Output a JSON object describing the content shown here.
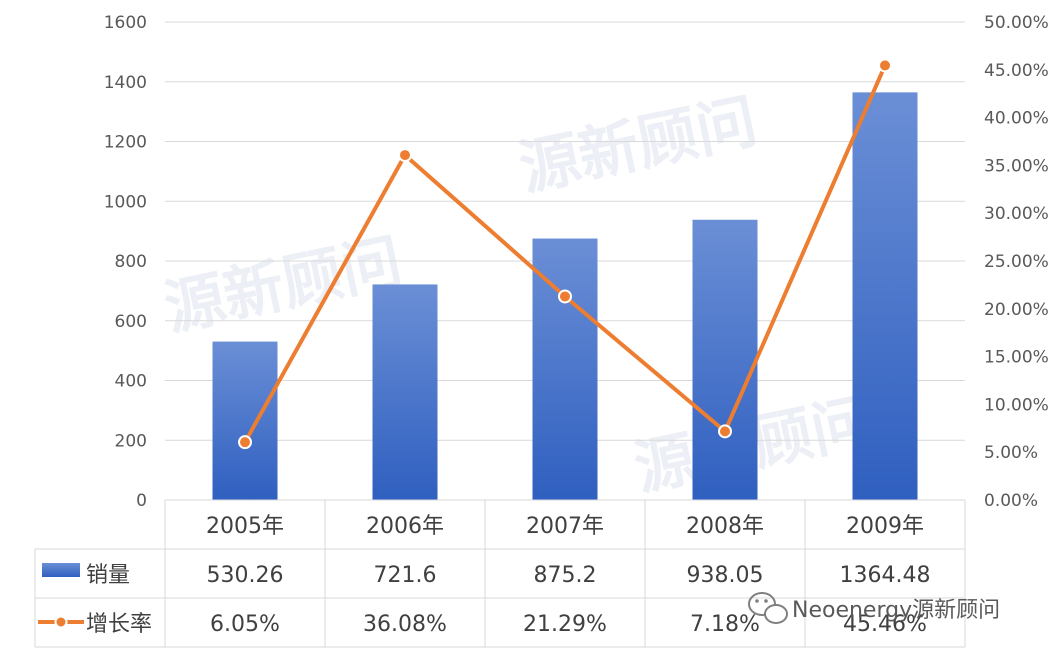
{
  "chart_data": {
    "type": "bar",
    "categories": [
      "2005年",
      "2006年",
      "2007年",
      "2008年",
      "2009年"
    ],
    "series": [
      {
        "name": "销量",
        "type": "bar",
        "axis": "left",
        "values": [
          530.26,
          721.6,
          875.2,
          938.05,
          1364.48
        ],
        "labels": [
          "530.26",
          "721.6",
          "875.2",
          "938.05",
          "1364.48"
        ],
        "color": "#4472c4"
      },
      {
        "name": "增长率",
        "type": "line",
        "axis": "right",
        "values": [
          6.05,
          36.08,
          21.29,
          7.18,
          45.46
        ],
        "labels": [
          "6.05%",
          "36.08%",
          "21.29%",
          "7.18%",
          "45.46%"
        ],
        "color": "#ed7d31"
      }
    ],
    "ylim": [
      0,
      1600
    ],
    "y_ticks": [
      "0",
      "200",
      "400",
      "600",
      "800",
      "1000",
      "1200",
      "1400",
      "1600"
    ],
    "y2lim": [
      0,
      50
    ],
    "y2_ticks": [
      "0.00%",
      "5.00%",
      "10.00%",
      "15.00%",
      "20.00%",
      "25.00%",
      "30.00%",
      "35.00%",
      "40.00%",
      "45.00%",
      "50.00%"
    ],
    "grid": true,
    "legend": "data-table"
  },
  "watermark": {
    "text": "源新顾问",
    "credit": "Neoenergy源新顾问",
    "wechat_icon": "wechat-icon"
  }
}
